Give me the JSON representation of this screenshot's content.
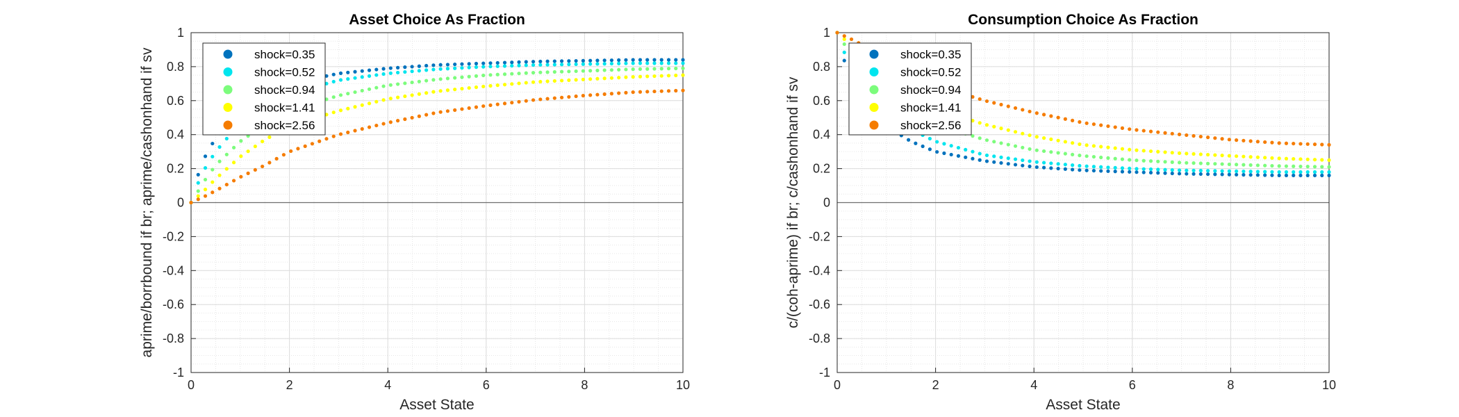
{
  "chart_data": [
    {
      "type": "scatter",
      "title": "Asset Choice As Fraction",
      "xlabel": "Asset State",
      "ylabel": "aprime/borrbound if br; aprime/cashonhand if sv",
      "xlim": [
        0,
        10
      ],
      "ylim": [
        -1,
        1
      ],
      "xticks": [
        "0",
        "2",
        "4",
        "6",
        "8",
        "10"
      ],
      "yticks": [
        "-1",
        "-0.8",
        "-0.6",
        "-0.4",
        "-0.2",
        "0",
        "0.2",
        "0.4",
        "0.6",
        "0.8",
        "1"
      ],
      "grid": true,
      "minor_grid": true,
      "zero_line": true,
      "legend_position": "top-left",
      "x_points": {
        "start": 0,
        "end": 10,
        "count": 70
      },
      "series": [
        {
          "name": "shock=0.35",
          "color": "#0072BD",
          "values_at": {
            "0": 0.0,
            "0.15": 0.17,
            "0.3": 0.28,
            "0.5": 0.38,
            "1": 0.55,
            "1.5": 0.64,
            "2": 0.7,
            "3": 0.76,
            "4": 0.79,
            "5": 0.81,
            "6": 0.82,
            "7": 0.83,
            "8": 0.835,
            "9": 0.84,
            "10": 0.84
          }
        },
        {
          "name": "shock=0.52",
          "color": "#00E5EE",
          "values_at": {
            "0": 0.0,
            "0.15": 0.12,
            "0.3": 0.21,
            "0.5": 0.3,
            "1": 0.47,
            "1.5": 0.57,
            "2": 0.64,
            "3": 0.72,
            "4": 0.76,
            "5": 0.785,
            "6": 0.8,
            "7": 0.81,
            "8": 0.815,
            "9": 0.82,
            "10": 0.82
          }
        },
        {
          "name": "shock=0.94",
          "color": "#7CFC7C",
          "values_at": {
            "0": 0.0,
            "0.15": 0.07,
            "0.3": 0.14,
            "0.5": 0.22,
            "1": 0.36,
            "1.5": 0.46,
            "2": 0.54,
            "3": 0.63,
            "4": 0.69,
            "5": 0.725,
            "6": 0.75,
            "7": 0.765,
            "8": 0.775,
            "9": 0.785,
            "10": 0.79
          }
        },
        {
          "name": "shock=1.41",
          "color": "#FFFF00",
          "values_at": {
            "0": 0.0,
            "0.15": 0.04,
            "0.3": 0.08,
            "0.5": 0.14,
            "1": 0.27,
            "1.5": 0.37,
            "2": 0.45,
            "3": 0.54,
            "4": 0.61,
            "5": 0.655,
            "6": 0.685,
            "7": 0.71,
            "8": 0.725,
            "9": 0.74,
            "10": 0.75
          }
        },
        {
          "name": "shock=2.56",
          "color": "#F57C00",
          "values_at": {
            "0": 0.0,
            "0.15": 0.02,
            "0.3": 0.04,
            "0.5": 0.07,
            "1": 0.15,
            "1.5": 0.22,
            "2": 0.3,
            "3": 0.4,
            "4": 0.47,
            "5": 0.53,
            "6": 0.57,
            "7": 0.605,
            "8": 0.63,
            "9": 0.65,
            "10": 0.66
          }
        }
      ]
    },
    {
      "type": "scatter",
      "title": "Consumption Choice As Fraction",
      "xlabel": "Asset State",
      "ylabel": "c/(coh-aprime) if br; c/cashonhand if sv",
      "xlim": [
        0,
        10
      ],
      "ylim": [
        -1,
        1
      ],
      "xticks": [
        "0",
        "2",
        "4",
        "6",
        "8",
        "10"
      ],
      "yticks": [
        "-1",
        "-0.8",
        "-0.6",
        "-0.4",
        "-0.2",
        "0",
        "0.2",
        "0.4",
        "0.6",
        "0.8",
        "1"
      ],
      "grid": true,
      "minor_grid": true,
      "zero_line": true,
      "legend_position": "top-left",
      "x_points": {
        "start": 0,
        "end": 10,
        "count": 70
      },
      "series": [
        {
          "name": "shock=0.35",
          "color": "#0072BD",
          "values_at": {
            "0": 1.0,
            "0.15": 0.83,
            "0.3": 0.72,
            "0.5": 0.62,
            "1": 0.45,
            "1.5": 0.36,
            "2": 0.3,
            "3": 0.245,
            "4": 0.21,
            "5": 0.19,
            "6": 0.18,
            "7": 0.17,
            "8": 0.165,
            "9": 0.16,
            "10": 0.16
          }
        },
        {
          "name": "shock=0.52",
          "color": "#00E5EE",
          "values_at": {
            "0": 1.0,
            "0.15": 0.88,
            "0.3": 0.79,
            "0.5": 0.7,
            "1": 0.53,
            "1.5": 0.43,
            "2": 0.36,
            "3": 0.28,
            "4": 0.24,
            "5": 0.215,
            "6": 0.2,
            "7": 0.19,
            "8": 0.185,
            "9": 0.18,
            "10": 0.18
          }
        },
        {
          "name": "shock=0.94",
          "color": "#7CFC7C",
          "values_at": {
            "0": 1.0,
            "0.15": 0.93,
            "0.3": 0.86,
            "0.5": 0.78,
            "1": 0.64,
            "1.5": 0.54,
            "2": 0.46,
            "3": 0.37,
            "4": 0.31,
            "5": 0.275,
            "6": 0.25,
            "7": 0.235,
            "8": 0.225,
            "9": 0.215,
            "10": 0.21
          }
        },
        {
          "name": "shock=1.41",
          "color": "#FFFF00",
          "values_at": {
            "0": 1.0,
            "0.15": 0.96,
            "0.3": 0.92,
            "0.5": 0.86,
            "1": 0.73,
            "1.5": 0.63,
            "2": 0.55,
            "3": 0.46,
            "4": 0.39,
            "5": 0.34,
            "6": 0.31,
            "7": 0.29,
            "8": 0.275,
            "9": 0.26,
            "10": 0.25
          }
        },
        {
          "name": "shock=2.56",
          "color": "#F57C00",
          "values_at": {
            "0": 1.0,
            "0.15": 0.98,
            "0.3": 0.96,
            "0.5": 0.93,
            "1": 0.85,
            "1.5": 0.76,
            "2": 0.69,
            "3": 0.6,
            "4": 0.53,
            "5": 0.47,
            "6": 0.43,
            "7": 0.4,
            "8": 0.37,
            "9": 0.35,
            "10": 0.34
          }
        }
      ]
    }
  ]
}
